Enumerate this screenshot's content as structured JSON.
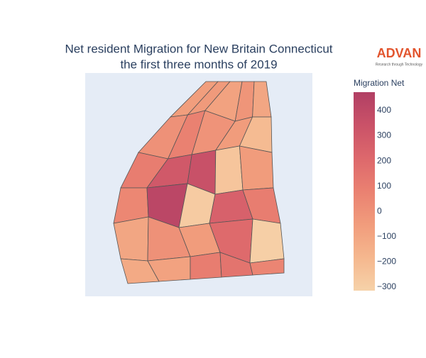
{
  "chart_data": {
    "type": "choropleth",
    "title": "Net resident Migration for New Britain Connecticut",
    "subtitle": "the first three months of 2019",
    "logo": "ADVAN",
    "logo_tagline": "Research through Technology",
    "colorbar_title": "Migration Net",
    "colorscale": [
      "#f6d2a9",
      "#f5b78e",
      "#f19c7c",
      "#ea8171",
      "#dd686c",
      "#ca5268",
      "#b13f64"
    ],
    "clim": [
      -314,
      473
    ],
    "cticks": [
      {
        "value": -300,
        "label": "−300"
      },
      {
        "value": -200,
        "label": "−200"
      },
      {
        "value": -100,
        "label": "−100"
      },
      0,
      100,
      200,
      300,
      400
    ],
    "values": [
      -60,
      -40,
      -80,
      -20,
      -100,
      0,
      80,
      -10,
      -50,
      -200,
      100,
      300,
      350,
      -250,
      -50,
      50,
      420,
      -280,
      250,
      100,
      -100,
      0,
      -50,
      200,
      -300,
      -120,
      -80,
      100,
      150,
      60
    ]
  }
}
